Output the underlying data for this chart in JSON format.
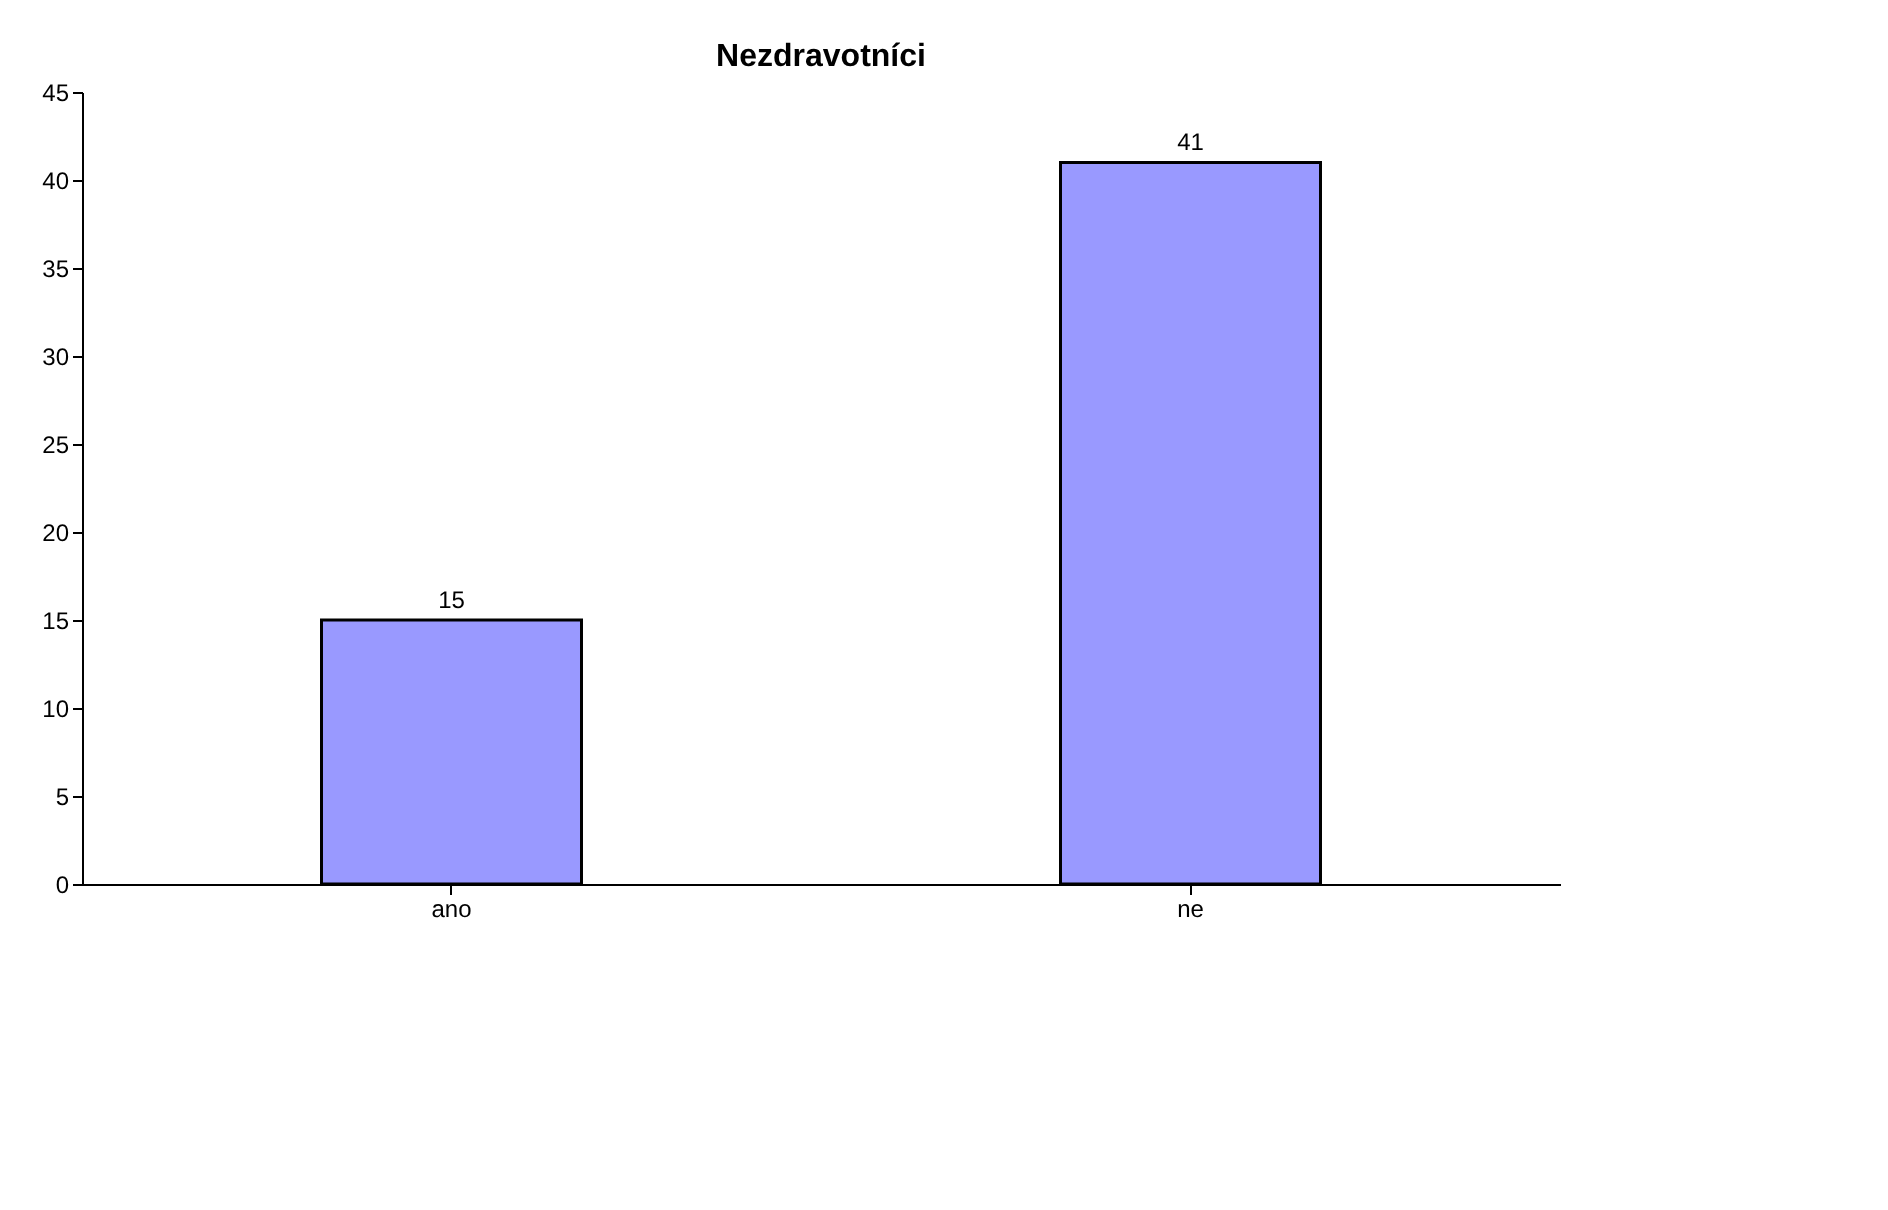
{
  "chart_data": {
    "type": "bar",
    "title": "Nezdravotníci",
    "categories": [
      "ano",
      "ne"
    ],
    "values": [
      15,
      41
    ],
    "color": "#9999ff",
    "ylim": [
      0,
      45
    ],
    "yticks": [
      0,
      5,
      10,
      15,
      20,
      25,
      30,
      35,
      40,
      45
    ],
    "data_labels": true,
    "grid": false
  }
}
